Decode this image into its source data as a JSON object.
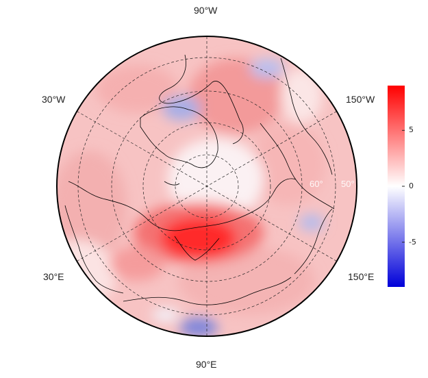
{
  "map": {
    "projection": "north-polar-stereographic",
    "longitude_labels": {
      "top": "90°W",
      "left_upper": "30°W",
      "right_upper": "150°W",
      "left_lower": "30°E",
      "right_lower": "150°E",
      "bottom": "90°E"
    },
    "latitude_labels": {
      "inner": "60°",
      "outer": "50°"
    },
    "colormap": {
      "low": "#0000d9",
      "mid": "#ffffff",
      "high": "#ff0000"
    }
  },
  "colorbar": {
    "min": -9,
    "max": 9,
    "ticks": [
      {
        "value": 5,
        "label": "5"
      },
      {
        "value": 0,
        "label": "0"
      },
      {
        "value": -5,
        "label": "-5"
      }
    ]
  }
}
